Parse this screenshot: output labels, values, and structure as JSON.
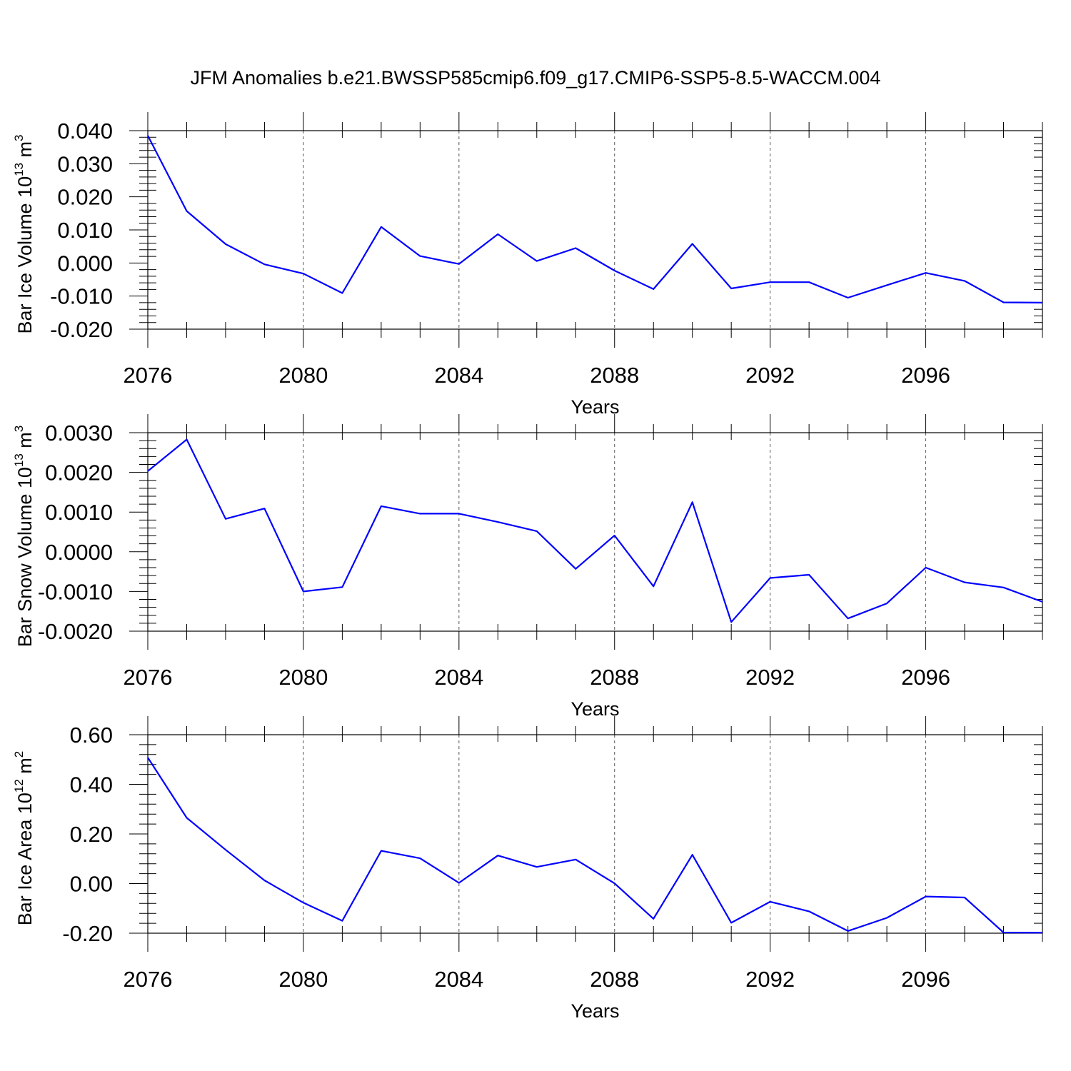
{
  "figure": {
    "title": "JFM Anomalies b.e21.BWSSP585cmip6.f09_g17.CMIP6-SSP5-8.5-WACCM.004",
    "line_color": "#0000ff"
  },
  "chart_data": [
    {
      "type": "line",
      "ylabel": "Bar Ice Volume 10",
      "ylabel_exp": "13",
      "ylabel_unit": "m",
      "ylabel_unit_exp": "3",
      "xlabel": "Years",
      "xlim": [
        2076,
        2099
      ],
      "ylim": [
        -0.02,
        0.04
      ],
      "yticks": [
        0.04,
        0.03,
        0.02,
        0.01,
        0.0,
        -0.01,
        -0.02
      ],
      "ytick_labels": [
        "0.040",
        "0.030",
        "0.020",
        "0.010",
        "0.000",
        "-0.010",
        "-0.020"
      ],
      "xticks": [
        2076,
        2080,
        2084,
        2088,
        2092,
        2096
      ],
      "xtick_labels": [
        "2076",
        "2080",
        "2084",
        "2088",
        "2092",
        "2096"
      ],
      "x": [
        2076,
        2077,
        2078,
        2079,
        2080,
        2081,
        2082,
        2083,
        2084,
        2085,
        2086,
        2087,
        2088,
        2089,
        2090,
        2091,
        2092,
        2093,
        2094,
        2095,
        2096,
        2097,
        2098,
        2099
      ],
      "series": [
        {
          "values": [
            0.0385,
            0.0157,
            0.0057,
            -0.0004,
            -0.0032,
            -0.0091,
            0.0109,
            0.0021,
            -0.0003,
            0.0087,
            0.0006,
            0.0045,
            -0.0023,
            -0.0079,
            0.0058,
            -0.0077,
            -0.0058,
            -0.0058,
            -0.0105,
            -0.0067,
            -0.003,
            -0.0054,
            -0.0119,
            -0.012
          ]
        }
      ]
    },
    {
      "type": "line",
      "ylabel": "Bar Snow Volume 10",
      "ylabel_exp": "13",
      "ylabel_unit": "m",
      "ylabel_unit_exp": "3",
      "xlabel": "Years",
      "xlim": [
        2076,
        2099
      ],
      "ylim": [
        -0.002,
        0.003
      ],
      "yticks": [
        0.003,
        0.002,
        0.001,
        0.0,
        -0.001,
        -0.002
      ],
      "ytick_labels": [
        "0.0030",
        "0.0020",
        "0.0010",
        "0.0000",
        "-0.0010",
        "-0.0020"
      ],
      "xticks": [
        2076,
        2080,
        2084,
        2088,
        2092,
        2096
      ],
      "xtick_labels": [
        "2076",
        "2080",
        "2084",
        "2088",
        "2092",
        "2096"
      ],
      "x": [
        2076,
        2077,
        2078,
        2079,
        2080,
        2081,
        2082,
        2083,
        2084,
        2085,
        2086,
        2087,
        2088,
        2089,
        2090,
        2091,
        2092,
        2093,
        2094,
        2095,
        2096,
        2097,
        2098,
        2099
      ],
      "series": [
        {
          "values": [
            0.00203,
            0.00283,
            0.00083,
            0.00109,
            -0.001,
            -0.00089,
            0.00115,
            0.00096,
            0.00096,
            0.00075,
            0.00052,
            -0.00043,
            0.00041,
            -0.00087,
            0.00125,
            -0.00177,
            -0.00066,
            -0.00058,
            -0.00168,
            -0.0013,
            -0.0004,
            -0.00077,
            -0.0009,
            -0.00126
          ]
        }
      ]
    },
    {
      "type": "line",
      "ylabel": "Bar Ice Area 10",
      "ylabel_exp": "12",
      "ylabel_unit": "m",
      "ylabel_unit_exp": "2",
      "xlabel": "Years",
      "xlim": [
        2076,
        2099
      ],
      "ylim": [
        -0.2,
        0.6
      ],
      "yticks": [
        0.6,
        0.4,
        0.2,
        0.0,
        -0.2
      ],
      "ytick_labels": [
        "0.60",
        "0.40",
        "0.20",
        "0.00",
        "-0.20"
      ],
      "xticks": [
        2076,
        2080,
        2084,
        2088,
        2092,
        2096
      ],
      "xtick_labels": [
        "2076",
        "2080",
        "2084",
        "2088",
        "2092",
        "2096"
      ],
      "x": [
        2076,
        2077,
        2078,
        2079,
        2080,
        2081,
        2082,
        2083,
        2084,
        2085,
        2086,
        2087,
        2088,
        2089,
        2090,
        2091,
        2092,
        2093,
        2094,
        2095,
        2096,
        2097,
        2098,
        2099
      ],
      "series": [
        {
          "values": [
            0.508,
            0.265,
            0.136,
            0.013,
            -0.077,
            -0.15,
            0.132,
            0.102,
            0.003,
            0.113,
            0.067,
            0.097,
            0.001,
            -0.142,
            0.116,
            -0.158,
            -0.073,
            -0.112,
            -0.191,
            -0.138,
            -0.052,
            -0.056,
            -0.197,
            -0.198
          ]
        }
      ]
    }
  ]
}
